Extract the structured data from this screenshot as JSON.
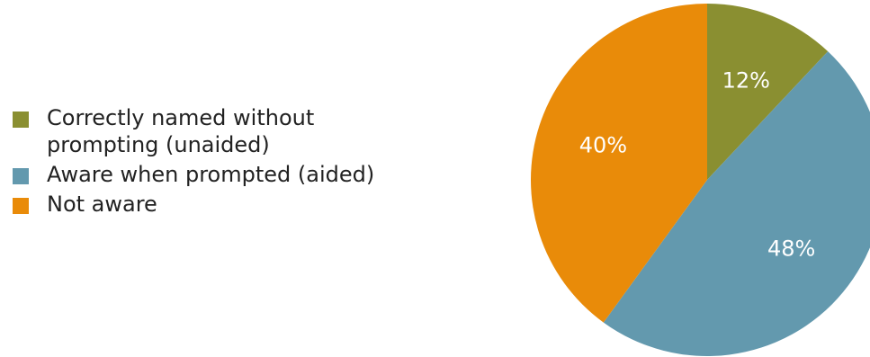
{
  "chart_data": {
    "type": "pie",
    "categories": [
      "Correctly named without prompting (unaided)",
      "Aware when prompted (aided)",
      "Not aware"
    ],
    "values": [
      12,
      48,
      40
    ],
    "data_labels": [
      "12%",
      "48%",
      "40%"
    ],
    "colors": [
      "#8a8f31",
      "#6399ae",
      "#e98b09"
    ],
    "title": "",
    "legend_position": "left",
    "start_angle": "12 o'clock",
    "direction": "clockwise"
  },
  "legend": {
    "items": [
      {
        "label_line1": "Correctly named without",
        "label_line2": "prompting (unaided)"
      },
      {
        "label_line1": "Aware when prompted (aided)"
      },
      {
        "label_line1": "Not aware"
      }
    ]
  }
}
